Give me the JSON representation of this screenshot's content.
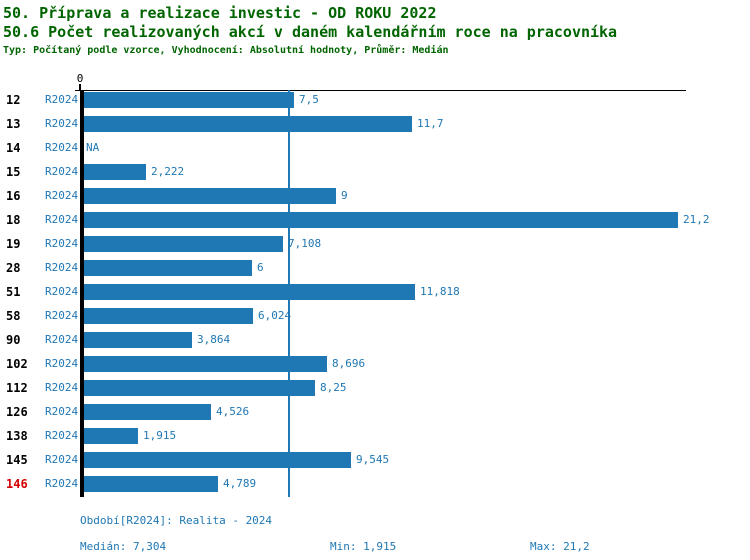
{
  "header": {
    "title": "50. Příprava a realizace investic - OD ROKU 2022",
    "subtitle": "50.6 Počet realizovaných akcí v daném kalendářním roce na pracovníka",
    "meta": "Typ: Počítaný podle vzorce, Vyhodnocení: Absolutní hodnoty, Průměr: Medián"
  },
  "chart_data": {
    "type": "bar",
    "orientation": "horizontal",
    "axis_zero_label": "0",
    "axis_max": 21.464,
    "median_value": 7.304,
    "series_name": "R2024",
    "categories": [
      "12",
      "13",
      "14",
      "15",
      "16",
      "18",
      "19",
      "28",
      "51",
      "58",
      "90",
      "102",
      "112",
      "126",
      "138",
      "145",
      "146"
    ],
    "rows": [
      {
        "id": "12",
        "period": "R2024",
        "value": 7.5,
        "label": "7,5"
      },
      {
        "id": "13",
        "period": "R2024",
        "value": 11.7,
        "label": "11,7"
      },
      {
        "id": "14",
        "period": "R2024",
        "value": null,
        "label": "NA"
      },
      {
        "id": "15",
        "period": "R2024",
        "value": 2.222,
        "label": "2,222"
      },
      {
        "id": "16",
        "period": "R2024",
        "value": 9,
        "label": "9"
      },
      {
        "id": "18",
        "period": "R2024",
        "value": 21.2,
        "label": "21,2"
      },
      {
        "id": "19",
        "period": "R2024",
        "value": 7.108,
        "label": "7,108"
      },
      {
        "id": "28",
        "period": "R2024",
        "value": 6,
        "label": "6"
      },
      {
        "id": "51",
        "period": "R2024",
        "value": 11.818,
        "label": "11,818"
      },
      {
        "id": "58",
        "period": "R2024",
        "value": 6.024,
        "label": "6,024"
      },
      {
        "id": "90",
        "period": "R2024",
        "value": 3.864,
        "label": "3,864"
      },
      {
        "id": "102",
        "period": "R2024",
        "value": 8.696,
        "label": "8,696"
      },
      {
        "id": "112",
        "period": "R2024",
        "value": 8.25,
        "label": "8,25"
      },
      {
        "id": "126",
        "period": "R2024",
        "value": 4.526,
        "label": "4,526"
      },
      {
        "id": "138",
        "period": "R2024",
        "value": 1.915,
        "label": "1,915"
      },
      {
        "id": "145",
        "period": "R2024",
        "value": 9.545,
        "label": "9,545"
      },
      {
        "id": "146",
        "period": "R2024",
        "value": 4.789,
        "label": "4,789",
        "highlight": true
      }
    ],
    "colors": {
      "bar": "#1f77b4",
      "title_green": "#006400",
      "highlight_red": "#d40000"
    },
    "legend_position": "none",
    "grid": false
  },
  "footer": {
    "period_line": "Období[R2024]: Realita - 2024",
    "median": "Medián: 7,304",
    "min": "Min: 1,915",
    "max": "Max: 21,2"
  }
}
